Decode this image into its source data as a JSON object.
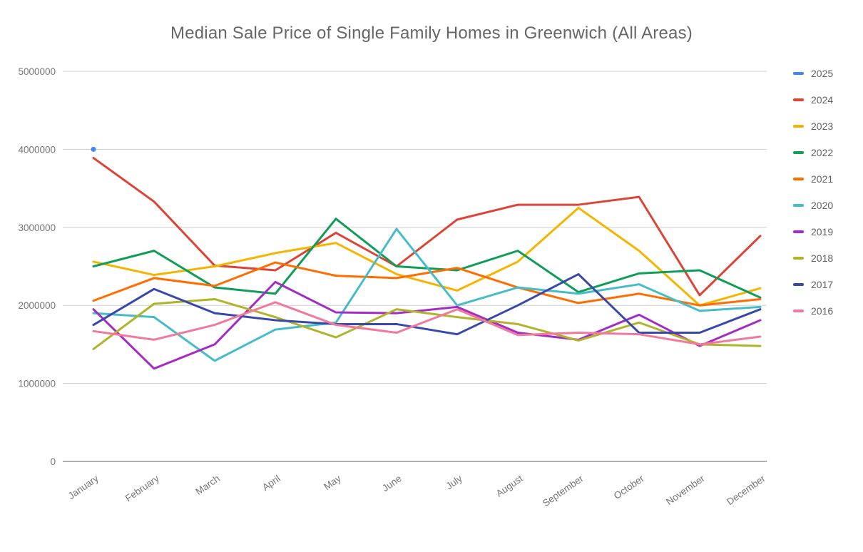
{
  "chart_data": {
    "type": "line",
    "title": "Median Sale Price of Single Family Homes in Greenwich (All Areas)",
    "xlabel": "",
    "ylabel": "",
    "categories": [
      "January",
      "February",
      "March",
      "April",
      "May",
      "June",
      "July",
      "August",
      "September",
      "October",
      "November",
      "December"
    ],
    "ylim": [
      0,
      5000000
    ],
    "yticks": [
      0,
      1000000,
      2000000,
      3000000,
      4000000,
      5000000
    ],
    "grid": true,
    "legend_position": "right",
    "series": [
      {
        "name": "2025",
        "color": "#4285F4",
        "values": [
          4000000,
          null,
          null,
          null,
          null,
          null,
          null,
          null,
          null,
          null,
          null,
          null
        ]
      },
      {
        "name": "2024",
        "color": "#DB4437",
        "values": [
          3890000,
          3330000,
          2510000,
          2450000,
          2930000,
          2500000,
          3100000,
          3290000,
          3290000,
          3390000,
          2130000,
          2890000
        ]
      },
      {
        "name": "2023",
        "color": "#F4B400",
        "values": [
          2560000,
          2390000,
          2500000,
          2670000,
          2800000,
          2400000,
          2190000,
          2560000,
          3250000,
          2700000,
          2000000,
          2220000
        ]
      },
      {
        "name": "2022",
        "color": "#0F9D58",
        "values": [
          2500000,
          2700000,
          2230000,
          2150000,
          3110000,
          2500000,
          2450000,
          2700000,
          2170000,
          2410000,
          2450000,
          2100000
        ]
      },
      {
        "name": "2021",
        "color": "#FF6D01",
        "values": [
          2060000,
          2350000,
          2250000,
          2550000,
          2380000,
          2350000,
          2480000,
          2230000,
          2030000,
          2150000,
          2000000,
          2080000
        ]
      },
      {
        "name": "2020",
        "color": "#46BDC6",
        "values": [
          1900000,
          1850000,
          1290000,
          1690000,
          1780000,
          2980000,
          2000000,
          2230000,
          2150000,
          2270000,
          1930000,
          1980000
        ]
      },
      {
        "name": "2019",
        "color": "#A32CC4",
        "values": [
          1950000,
          1190000,
          1500000,
          2300000,
          1910000,
          1900000,
          1980000,
          1650000,
          1560000,
          1880000,
          1480000,
          1810000
        ]
      },
      {
        "name": "2018",
        "color": "#AFB42B",
        "values": [
          1440000,
          2020000,
          2080000,
          1850000,
          1590000,
          1950000,
          1850000,
          1760000,
          1550000,
          1780000,
          1500000,
          1480000
        ]
      },
      {
        "name": "2017",
        "color": "#3949AB",
        "values": [
          1750000,
          2210000,
          1900000,
          1810000,
          1760000,
          1760000,
          1630000,
          2000000,
          2400000,
          1650000,
          1650000,
          1950000
        ]
      },
      {
        "name": "2016",
        "color": "#F2799E",
        "values": [
          1670000,
          1560000,
          1750000,
          2040000,
          1750000,
          1650000,
          1950000,
          1620000,
          1650000,
          1630000,
          1500000,
          1600000
        ]
      }
    ]
  }
}
